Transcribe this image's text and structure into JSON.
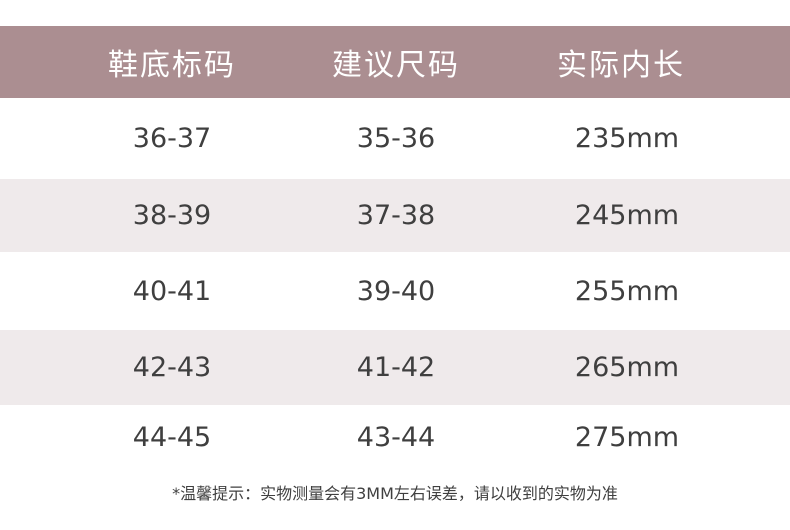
{
  "colors": {
    "header_bg": "#ab8e91",
    "shade_row": "#efeaeb",
    "text": "#3f3f3f"
  },
  "table": {
    "headers": [
      "鞋底标码",
      "建议尺码",
      "实际内长"
    ],
    "rows": [
      [
        "36-37",
        "35-36",
        "235mm"
      ],
      [
        "38-39",
        "37-38",
        "245mm"
      ],
      [
        "40-41",
        "39-40",
        "255mm"
      ],
      [
        "42-43",
        "41-42",
        "265mm"
      ],
      [
        "44-45",
        "43-44",
        "275mm"
      ]
    ]
  },
  "note": "*温馨提示：实物测量会有3MM左右误差，请以收到的实物为准"
}
